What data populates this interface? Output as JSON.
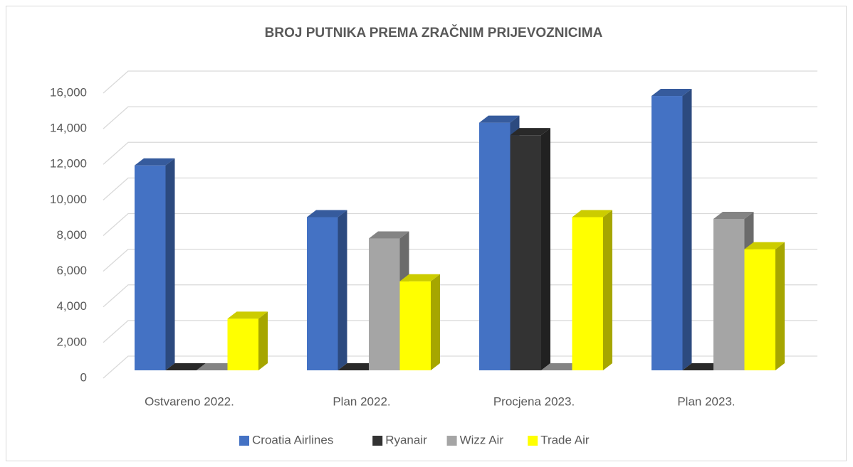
{
  "chart_data": {
    "type": "bar3d",
    "title": "BROJ PUTNIKA PREMA ZRAČNIM PRIJEVOZNICIMA",
    "categories": [
      "Ostvareno 2022.",
      "Plan 2022.",
      "Procjena 2023.",
      "Plan 2023."
    ],
    "series": [
      {
        "name": "Croatia Airlines",
        "color": "#4472c4",
        "values": [
          11500,
          8600,
          13900,
          15400
        ]
      },
      {
        "name": "Ryanair",
        "color": "#333333",
        "values": [
          0,
          0,
          13200,
          0
        ]
      },
      {
        "name": "Wizz Air",
        "color": "#a5a5a5",
        "values": [
          0,
          7400,
          0,
          8500
        ]
      },
      {
        "name": "Trade Air",
        "color": "#ffff00",
        "values": [
          2900,
          5000,
          8600,
          6800
        ]
      }
    ],
    "ylim": [
      0,
      16000
    ],
    "yticks": [
      0,
      {
        "value": 2000,
        "label": "2,000"
      },
      {
        "value": 4000,
        "label": "4,000"
      },
      {
        "value": 6000,
        "label": "6,000"
      },
      {
        "value": 8000,
        "label": "8,000"
      },
      {
        "value": 10000,
        "label": "10,000"
      },
      {
        "value": 12000,
        "label": "12,000"
      },
      {
        "value": 14000,
        "label": "14,000"
      },
      {
        "value": 16000,
        "label": "16,000"
      }
    ],
    "grid": true,
    "legend": "bottom"
  }
}
